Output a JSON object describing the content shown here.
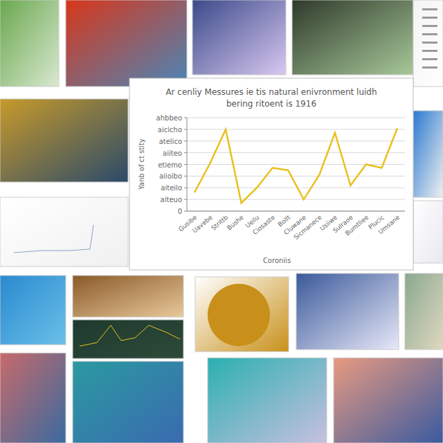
{
  "chart_data": {
    "type": "line",
    "title": "Ar cenliy Messures ie tis natural enivronment luidh",
    "subtitle": "bering ritoent is 1916",
    "x_label": "Coroniis",
    "y_label": "Yanb of ct stity",
    "categories": [
      "Gusibe",
      "Uavebe",
      "Strittb",
      "Bushe",
      "Ueilu",
      "Ciosaste",
      "Bollt",
      "Cluwane",
      "Sicmanece",
      "Usiiwe",
      "Sulraoe",
      "Bumtliee",
      "Plucic",
      "Umsane"
    ],
    "values": [
      1.6,
      4.1,
      7.0,
      0.7,
      2.0,
      3.7,
      3.5,
      1.0,
      3.1,
      6.7,
      2.2,
      4.0,
      3.7,
      7.1
    ],
    "color": "#e8c020",
    "ylim": [
      0,
      8
    ],
    "yticks": [
      0,
      {
        "value": 1,
        "label": "aiteuo"
      },
      {
        "value": 2,
        "label": "aiteilo"
      },
      {
        "value": 3,
        "label": "aiioibo"
      },
      {
        "value": 4,
        "label": "etiemo"
      },
      {
        "value": 5,
        "label": "aiiteo"
      },
      {
        "value": 6,
        "label": "atelico"
      },
      {
        "value": 7,
        "label": "aicicho"
      },
      {
        "value": 8,
        "label": "ahbbeo"
      }
    ],
    "grid": true
  }
}
